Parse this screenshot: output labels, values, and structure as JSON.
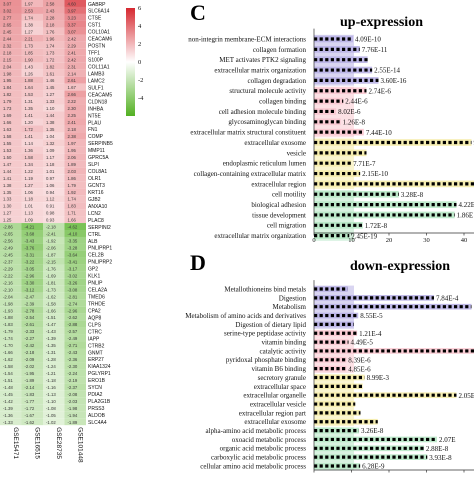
{
  "chart_data": [
    {
      "type": "heatmap",
      "columns": [
        "GSE15471",
        "GSE16515",
        "GSE28735",
        "GSE101448"
      ],
      "colorbar_ticks": [
        6,
        4,
        2,
        0,
        -2,
        -4
      ],
      "color_range": [
        -6,
        6
      ],
      "rows": [
        {
          "gene": "GABRP",
          "values": [
            3.07,
            1.97,
            2.58,
            4.6
          ]
        },
        {
          "gene": "SLC6A14",
          "values": [
            3.02,
            2.53,
            2.43,
            3.97
          ]
        },
        {
          "gene": "CTSE",
          "values": [
            2.77,
            1.74,
            2.28,
            3.23
          ]
        },
        {
          "gene": "CST1",
          "values": [
            2.65,
            1.38,
            2.18,
            3.37
          ]
        },
        {
          "gene": "COL10A1",
          "values": [
            2.45,
            1.27,
            1.76,
            3.07
          ]
        },
        {
          "gene": "CEACAM6",
          "values": [
            2.44,
            2.21,
            1.96,
            2.42
          ]
        },
        {
          "gene": "POSTN",
          "values": [
            2.32,
            1.73,
            1.74,
            2.29
          ]
        },
        {
          "gene": "TFF1",
          "values": [
            2.18,
            1.85,
            1.73,
            2.41
          ]
        },
        {
          "gene": "S100P",
          "values": [
            2.15,
            1.9,
            1.72,
            2.42
          ]
        },
        {
          "gene": "COL11A1",
          "values": [
            2.04,
            1.43,
            1.82,
            2.31
          ]
        },
        {
          "gene": "LAMB3",
          "values": [
            1.98,
            1.26,
            1.61,
            2.14
          ]
        },
        {
          "gene": "LAMC2",
          "values": [
            1.95,
            1.88,
            1.46,
            2.61
          ]
        },
        {
          "gene": "SULF1",
          "values": [
            1.84,
            1.64,
            1.45,
            1.67
          ]
        },
        {
          "gene": "CEACAM5",
          "values": [
            1.82,
            1.53,
            1.27,
            2.66
          ]
        },
        {
          "gene": "CLDN18",
          "values": [
            1.79,
            1.31,
            1.33,
            2.22
          ]
        },
        {
          "gene": "INHBA",
          "values": [
            1.73,
            1.35,
            1.1,
            2.3
          ]
        },
        {
          "gene": "NT5E",
          "values": [
            1.69,
            1.41,
            1.44,
            2.25
          ]
        },
        {
          "gene": "PLAU",
          "values": [
            1.66,
            1.2,
            1.38,
            2.41
          ]
        },
        {
          "gene": "FN1",
          "values": [
            1.63,
            1.72,
            1.35,
            2.18
          ]
        },
        {
          "gene": "COMP",
          "values": [
            1.58,
            1.41,
            1.04,
            2.38
          ]
        },
        {
          "gene": "SERPINB5",
          "values": [
            1.55,
            1.14,
            1.32,
            1.97
          ]
        },
        {
          "gene": "MMP11",
          "values": [
            1.53,
            1.36,
            1.09,
            1.95
          ]
        },
        {
          "gene": "GPRC5A",
          "values": [
            1.5,
            1.58,
            1.17,
            2.06
          ]
        },
        {
          "gene": "SLPI",
          "values": [
            1.47,
            1.34,
            1.18,
            1.89
          ]
        },
        {
          "gene": "COL8A1",
          "values": [
            1.44,
            1.22,
            1.01,
            2.03
          ]
        },
        {
          "gene": "OLR1",
          "values": [
            1.41,
            1.19,
            0.97,
            1.86
          ]
        },
        {
          "gene": "GCNT3",
          "values": [
            1.38,
            1.27,
            1.06,
            1.79
          ]
        },
        {
          "gene": "KRT16",
          "values": [
            1.35,
            1.06,
            0.94,
            1.92
          ]
        },
        {
          "gene": "GJB2",
          "values": [
            1.33,
            1.18,
            1.12,
            1.74
          ]
        },
        {
          "gene": "ANXA10",
          "values": [
            1.3,
            1.01,
            0.91,
            1.83
          ]
        },
        {
          "gene": "LCN2",
          "values": [
            1.27,
            1.13,
            0.98,
            1.71
          ]
        },
        {
          "gene": "PLAC8",
          "values": [
            1.25,
            1.09,
            0.93,
            1.66
          ]
        },
        {
          "gene": "SERPINI2",
          "values": [
            -2.86,
            -4.21,
            -2.18,
            -4.62
          ]
        },
        {
          "gene": "CTRL",
          "values": [
            -2.65,
            -3.68,
            -2.41,
            -4.1
          ]
        },
        {
          "gene": "ALB",
          "values": [
            -2.56,
            -3.43,
            -1.92,
            -3.35
          ]
        },
        {
          "gene": "PNLIPRP1",
          "values": [
            -2.49,
            -3.76,
            -2.06,
            -3.28
          ]
        },
        {
          "gene": "CEL2B",
          "values": [
            -2.45,
            -3.31,
            -1.87,
            -3.64
          ]
        },
        {
          "gene": "PNLIPRP2",
          "values": [
            -2.37,
            -3.22,
            -2.15,
            -3.41
          ]
        },
        {
          "gene": "GP2",
          "values": [
            -2.29,
            -3.05,
            -1.76,
            -3.17
          ]
        },
        {
          "gene": "KLK1",
          "values": [
            -2.22,
            -2.96,
            -1.69,
            -3.02
          ]
        },
        {
          "gene": "PNLIP",
          "values": [
            -2.16,
            -3.3,
            -1.81,
            -3.26
          ]
        },
        {
          "gene": "CELA2A",
          "values": [
            -2.1,
            -3.12,
            -1.73,
            -3.08
          ]
        },
        {
          "gene": "TMED6",
          "values": [
            -2.04,
            -2.47,
            -1.62,
            -2.81
          ]
        },
        {
          "gene": "TRHDE",
          "values": [
            -1.98,
            -2.39,
            -1.58,
            -2.74
          ]
        },
        {
          "gene": "CPA2",
          "values": [
            -1.93,
            -2.78,
            -1.66,
            -2.96
          ]
        },
        {
          "gene": "AQP8",
          "values": [
            -1.88,
            -2.54,
            -1.51,
            -2.62
          ]
        },
        {
          "gene": "CLPS",
          "values": [
            -1.83,
            -2.61,
            -1.47,
            -2.88
          ]
        },
        {
          "gene": "CTRC",
          "values": [
            -1.79,
            -2.33,
            -1.43,
            -2.57
          ]
        },
        {
          "gene": "IAPP",
          "values": [
            -1.74,
            -2.27,
            -1.39,
            -2.49
          ]
        },
        {
          "gene": "CTRB2",
          "values": [
            -1.7,
            -2.42,
            -1.35,
            -2.71
          ]
        },
        {
          "gene": "GNMT",
          "values": [
            -1.66,
            -2.18,
            -1.31,
            -2.43
          ]
        },
        {
          "gene": "ERP27",
          "values": [
            -1.62,
            -2.09,
            -1.28,
            -2.36
          ]
        },
        {
          "gene": "KIAA1324",
          "values": [
            -1.58,
            -2.02,
            -1.24,
            -2.3
          ]
        },
        {
          "gene": "PGLYRP1",
          "values": [
            -1.54,
            -1.95,
            -1.21,
            -2.24
          ]
        },
        {
          "gene": "ERO1B",
          "values": [
            -1.51,
            -1.89,
            -1.18,
            -2.19
          ]
        },
        {
          "gene": "SYCN",
          "values": [
            -1.48,
            -2.14,
            -1.16,
            -2.37
          ]
        },
        {
          "gene": "PDIA2",
          "values": [
            -1.45,
            -1.83,
            -1.13,
            -2.08
          ]
        },
        {
          "gene": "PLA2G1B",
          "values": [
            -1.42,
            -1.77,
            -1.1,
            -2.03
          ]
        },
        {
          "gene": "PRSS3",
          "values": [
            -1.39,
            -1.72,
            -1.08,
            -1.98
          ]
        },
        {
          "gene": "ALDOB",
          "values": [
            -1.36,
            -1.67,
            -1.05,
            -1.94
          ]
        },
        {
          "gene": "SLC4A4",
          "values": [
            -1.33,
            -1.62,
            -1.02,
            -1.89
          ]
        }
      ]
    },
    {
      "type": "bar",
      "panel": "C",
      "title": "up-expression",
      "x_ticks": [
        "0",
        "10",
        "20",
        "30",
        "40"
      ],
      "xlim": [
        0,
        45
      ],
      "categories": [
        "non-integrin membrane-ECM interactions",
        "collagen formation",
        "MET activates PTK2 signaling",
        "extracellular matrix organization",
        "collagen degradation",
        "structural molecule activity",
        "collagen binding",
        "cell adhesion molecule binding",
        "glycosaminoglycan binding",
        "extracellular matrix structural constituent",
        "extracellular exosome",
        "vesicle",
        "endoplasmic reticulum lumen",
        "collagen-containing extracellular matrix",
        "extracellular region",
        "cell motility",
        "biological adhesion",
        "tissue development",
        "cell migration",
        "extracellular matrix organization"
      ],
      "values": [
        10.4,
        12.2,
        14.3,
        15.5,
        17.2,
        14.0,
        7.8,
        5.9,
        7.1,
        13.3,
        42.0,
        14.0,
        9.9,
        12.3,
        43.0,
        22.6,
        38.0,
        37.5,
        13.0,
        9.4
      ],
      "labels": [
        "4.09E-10",
        "7.76E-11",
        "",
        "2.55E-14",
        "3.60E-16",
        "2.74E-6",
        "2.44E-6",
        "8.02E-6",
        "1.26E-8",
        "7.44E-10",
        "9.71E-6",
        "",
        "7.71E-7",
        "2.15E-10",
        "",
        "3.28E-8",
        "4.22E-8",
        "1.86E",
        "1.72E-8",
        "2.45E-19"
      ],
      "groups": [
        "#b9b2e6",
        "#b9b2e6",
        "#b9b2e6",
        "#b9b2e6",
        "#b9b2e6",
        "#f9c8d0",
        "#f9c8d0",
        "#f9c8d0",
        "#f9c8d0",
        "#f9c8d0",
        "#f5ecaa",
        "#f5ecaa",
        "#f5ecaa",
        "#f5ecaa",
        "#f5ecaa",
        "#b8e8c6",
        "#b8e8c6",
        "#b8e8c6",
        "#b8e8c6",
        "#b8e8c6"
      ]
    },
    {
      "type": "bar",
      "panel": "D",
      "title": "down-expression",
      "x_ticks": [
        "0",
        "10",
        "20",
        "30",
        "40"
      ],
      "xlim": [
        0,
        45
      ],
      "categories": [
        "Metallothioneins bind metals",
        "Digestion",
        "Metabolism",
        "Metabolism of amino acids and derivatives",
        "Digestion of dietary lipid",
        "serine-type peptidase activity",
        "vitamin binding",
        "catalytic activity",
        "pyridoxal phosphate binding",
        "vitamin B6 binding",
        "secretory granule",
        "extracellular space",
        "extracellular organelle",
        "extracellular vesicle",
        "extracellular region part",
        "extracellular exosome",
        "alpha-amino acid metabolic process",
        "oxoacid metabolic process",
        "organic acid metabolic process",
        "carboxylic acid metabolic process",
        "cellular amino acid metabolic process"
      ],
      "values": [
        9.0,
        32.0,
        42.0,
        11.8,
        10.6,
        11.5,
        9.2,
        43.0,
        8.6,
        8.6,
        13.5,
        13.0,
        38.0,
        11.0,
        12.4,
        17.0,
        12.0,
        32.8,
        29.3,
        30.2,
        12.3
      ],
      "labels": [
        "",
        "7.84E-4",
        "1.31E",
        "8.55E-5",
        "",
        "1.21E-4",
        "4.49E-5",
        "",
        "8.39E-6",
        "4.85E-6",
        "8.99E-3",
        "",
        "2.05E",
        "",
        "",
        "",
        "3.26E-8",
        "2.07E",
        "2.88E-8",
        "3.93E-8",
        "6.28E-9"
      ],
      "groups": [
        "#b9b2e6",
        "#b9b2e6",
        "#b9b2e6",
        "#b9b2e6",
        "#b9b2e6",
        "#f9c8d0",
        "#f9c8d0",
        "#f9c8d0",
        "#f9c8d0",
        "#f9c8d0",
        "#f5ecaa",
        "#f5ecaa",
        "#f5ecaa",
        "#f5ecaa",
        "#f5ecaa",
        "#f5ecaa",
        "#b8e8c6",
        "#b8e8c6",
        "#b8e8c6",
        "#b8e8c6",
        "#b8e8c6"
      ]
    }
  ]
}
